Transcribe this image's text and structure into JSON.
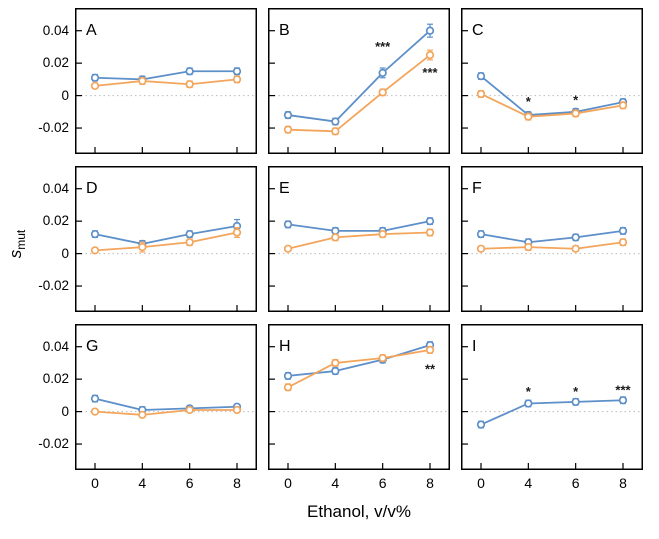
{
  "figure": {
    "xlabel": "Ethanol, v/v%",
    "ylabel": {
      "main": "s",
      "sub": "mut"
    },
    "x_tick_labels": [
      "0",
      "4",
      "6",
      "8"
    ],
    "y_tick_labels": [
      "0.04",
      "0.02",
      "0",
      "-0.02"
    ],
    "y_tick_values": [
      0.04,
      0.02,
      0,
      -0.02
    ],
    "ylim": [
      -0.036,
      0.054
    ],
    "colors": {
      "series1": "#5D8FC9",
      "series2": "#F3A55C",
      "zero_line": "#bbbbbb",
      "annotation": "#1a1a1a",
      "axis": "#000000"
    }
  },
  "chart_data": [
    {
      "type": "line",
      "panel": "A",
      "x": [
        0,
        4,
        6,
        8
      ],
      "series": [
        {
          "name": "blue",
          "color_key": "series1",
          "values": [
            0.011,
            0.01,
            0.015,
            0.015
          ],
          "err": [
            0.002,
            0.002,
            0.002,
            0.002
          ]
        },
        {
          "name": "orange",
          "color_key": "series2",
          "values": [
            0.006,
            0.009,
            0.007,
            0.01
          ],
          "err": [
            0.001,
            0.002,
            0.002,
            0.002
          ]
        }
      ],
      "annotations": []
    },
    {
      "type": "line",
      "panel": "B",
      "x": [
        0,
        4,
        6,
        8
      ],
      "series": [
        {
          "name": "blue",
          "color_key": "series1",
          "values": [
            -0.012,
            -0.016,
            0.014,
            0.04
          ],
          "err": [
            0.002,
            0.002,
            0.003,
            0.004
          ]
        },
        {
          "name": "orange",
          "color_key": "series2",
          "values": [
            -0.021,
            -0.022,
            0.002,
            0.025
          ],
          "err": [
            0.002,
            0.002,
            0.002,
            0.003
          ]
        }
      ],
      "annotations": [
        {
          "text": "***",
          "xi": 2,
          "y": 0.03
        },
        {
          "text": "***",
          "xi": 3,
          "y": 0.014
        }
      ]
    },
    {
      "type": "line",
      "panel": "C",
      "x": [
        0,
        4,
        6,
        8
      ],
      "series": [
        {
          "name": "blue",
          "color_key": "series1",
          "values": [
            0.012,
            -0.012,
            -0.01,
            -0.004
          ],
          "err": [
            0.002,
            0.002,
            0.002,
            0.002
          ]
        },
        {
          "name": "orange",
          "color_key": "series2",
          "values": [
            0.001,
            -0.013,
            -0.011,
            -0.006
          ],
          "err": [
            0.002,
            0.002,
            0.002,
            0.002
          ]
        }
      ],
      "annotations": [
        {
          "text": "*",
          "xi": 1,
          "y": -0.004
        },
        {
          "text": "*",
          "xi": 2,
          "y": -0.003
        }
      ]
    },
    {
      "type": "line",
      "panel": "D",
      "x": [
        0,
        4,
        6,
        8
      ],
      "series": [
        {
          "name": "blue",
          "color_key": "series1",
          "values": [
            0.012,
            0.006,
            0.012,
            0.017
          ],
          "err": [
            0.002,
            0.002,
            0.002,
            0.004
          ]
        },
        {
          "name": "orange",
          "color_key": "series2",
          "values": [
            0.002,
            0.004,
            0.007,
            0.013
          ],
          "err": [
            0.001,
            0.003,
            0.002,
            0.003
          ]
        }
      ],
      "annotations": []
    },
    {
      "type": "line",
      "panel": "E",
      "x": [
        0,
        4,
        6,
        8
      ],
      "series": [
        {
          "name": "blue",
          "color_key": "series1",
          "values": [
            0.018,
            0.014,
            0.014,
            0.02
          ],
          "err": [
            0.002,
            0.002,
            0.002,
            0.002
          ]
        },
        {
          "name": "orange",
          "color_key": "series2",
          "values": [
            0.003,
            0.01,
            0.012,
            0.013
          ],
          "err": [
            0.001,
            0.002,
            0.002,
            0.002
          ]
        }
      ],
      "annotations": []
    },
    {
      "type": "line",
      "panel": "F",
      "x": [
        0,
        4,
        6,
        8
      ],
      "series": [
        {
          "name": "blue",
          "color_key": "series1",
          "values": [
            0.012,
            0.007,
            0.01,
            0.014
          ],
          "err": [
            0.002,
            0.002,
            0.002,
            0.002
          ]
        },
        {
          "name": "orange",
          "color_key": "series2",
          "values": [
            0.003,
            0.004,
            0.003,
            0.007
          ],
          "err": [
            0.001,
            0.002,
            0.001,
            0.002
          ]
        }
      ],
      "annotations": []
    },
    {
      "type": "line",
      "panel": "G",
      "x": [
        0,
        4,
        6,
        8
      ],
      "series": [
        {
          "name": "blue",
          "color_key": "series1",
          "values": [
            0.008,
            0.001,
            0.002,
            0.003
          ],
          "err": [
            0.002,
            0.002,
            0.001,
            0.001
          ]
        },
        {
          "name": "orange",
          "color_key": "series2",
          "values": [
            0.0,
            -0.002,
            0.001,
            0.001
          ],
          "err": [
            0.001,
            0.001,
            0.001,
            0.001
          ]
        }
      ],
      "annotations": []
    },
    {
      "type": "line",
      "panel": "H",
      "x": [
        0,
        4,
        6,
        8
      ],
      "series": [
        {
          "name": "blue",
          "color_key": "series1",
          "values": [
            0.022,
            0.025,
            0.032,
            0.041
          ],
          "err": [
            0.002,
            0.002,
            0.002,
            0.002
          ]
        },
        {
          "name": "orange",
          "color_key": "series2",
          "values": [
            0.015,
            0.03,
            0.033,
            0.038
          ],
          "err": [
            0.002,
            0.002,
            0.002,
            0.002
          ]
        }
      ],
      "annotations": [
        {
          "text": "**",
          "xi": 3,
          "y": 0.026
        }
      ]
    },
    {
      "type": "line",
      "panel": "I",
      "x": [
        0,
        4,
        6,
        8
      ],
      "series": [
        {
          "name": "blue",
          "color_key": "series1",
          "values": [
            -0.008,
            0.005,
            0.006,
            0.007
          ],
          "err": [
            0.002,
            0.002,
            0.002,
            0.002
          ]
        }
      ],
      "annotations": [
        {
          "text": "*",
          "xi": 1,
          "y": 0.012
        },
        {
          "text": "*",
          "xi": 2,
          "y": 0.012
        },
        {
          "text": "***",
          "xi": 3,
          "y": 0.013
        }
      ]
    }
  ]
}
